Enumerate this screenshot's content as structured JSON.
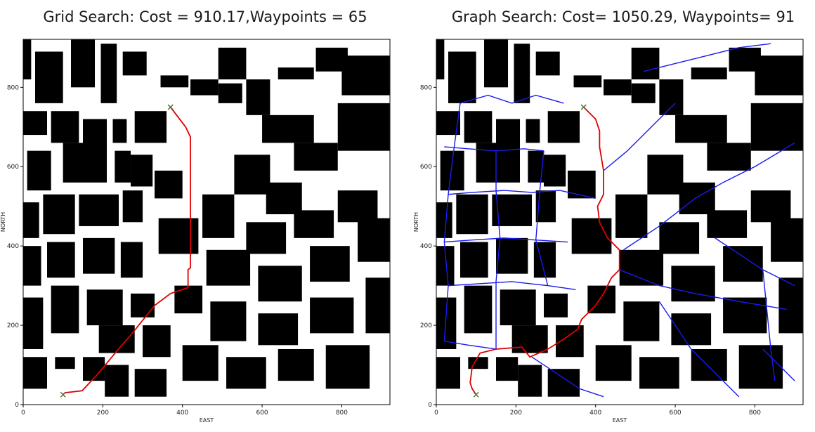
{
  "chart_data": [
    {
      "type": "scatter",
      "subtype": "occupancy-grid-path",
      "title": "Grid Search: Cost = 910.17,Waypoints = 65",
      "xlabel": "EAST",
      "ylabel": "NORTH",
      "xlim": [
        0,
        921
      ],
      "ylim": [
        0,
        921
      ],
      "xticks": [
        "0",
        "200",
        "400",
        "600",
        "800"
      ],
      "yticks": [
        "0",
        "200",
        "400",
        "600",
        "800"
      ],
      "obstacle_color": "#000000",
      "free_color": "#ffffff",
      "path_color": "#e00000",
      "marker_color": "#5a6e3a",
      "start": [
        100,
        25
      ],
      "goal": [
        370,
        750
      ],
      "path": [
        [
          100,
          25
        ],
        [
          105,
          30
        ],
        [
          148,
          35
        ],
        [
          190,
          80
        ],
        [
          235,
          135
        ],
        [
          270,
          175
        ],
        [
          330,
          250
        ],
        [
          370,
          280
        ],
        [
          414,
          295
        ],
        [
          414,
          340
        ],
        [
          420,
          345
        ],
        [
          420,
          675
        ],
        [
          408,
          700
        ],
        [
          370,
          750
        ]
      ],
      "markers": [
        "start-x",
        "goal-x"
      ]
    },
    {
      "type": "scatter",
      "subtype": "graph-path",
      "title": "Graph Search: Cost= 1050.29, Waypoints= 91",
      "xlabel": "EAST",
      "ylabel": "NORTH",
      "xlim": [
        0,
        921
      ],
      "ylim": [
        0,
        921
      ],
      "xticks": [
        "0",
        "200",
        "400",
        "600",
        "800"
      ],
      "yticks": [
        "0",
        "200",
        "400",
        "600",
        "800"
      ],
      "obstacle_color": "#000000",
      "free_color": "#ffffff",
      "graph_color": "#1a1aee",
      "path_color": "#e00000",
      "marker_color": "#5a6e3a",
      "start": [
        100,
        25
      ],
      "goal": [
        370,
        750
      ],
      "path": [
        [
          100,
          25
        ],
        [
          90,
          40
        ],
        [
          85,
          55
        ],
        [
          90,
          95
        ],
        [
          110,
          130
        ],
        [
          150,
          140
        ],
        [
          215,
          145
        ],
        [
          235,
          120
        ],
        [
          280,
          140
        ],
        [
          320,
          165
        ],
        [
          355,
          190
        ],
        [
          365,
          215
        ],
        [
          400,
          250
        ],
        [
          420,
          280
        ],
        [
          440,
          320
        ],
        [
          460,
          340
        ],
        [
          460,
          390
        ],
        [
          430,
          420
        ],
        [
          410,
          460
        ],
        [
          405,
          500
        ],
        [
          420,
          530
        ],
        [
          420,
          590
        ],
        [
          410,
          650
        ],
        [
          410,
          690
        ],
        [
          400,
          720
        ],
        [
          370,
          750
        ]
      ],
      "markers": [
        "start-x",
        "goal-x"
      ]
    }
  ]
}
